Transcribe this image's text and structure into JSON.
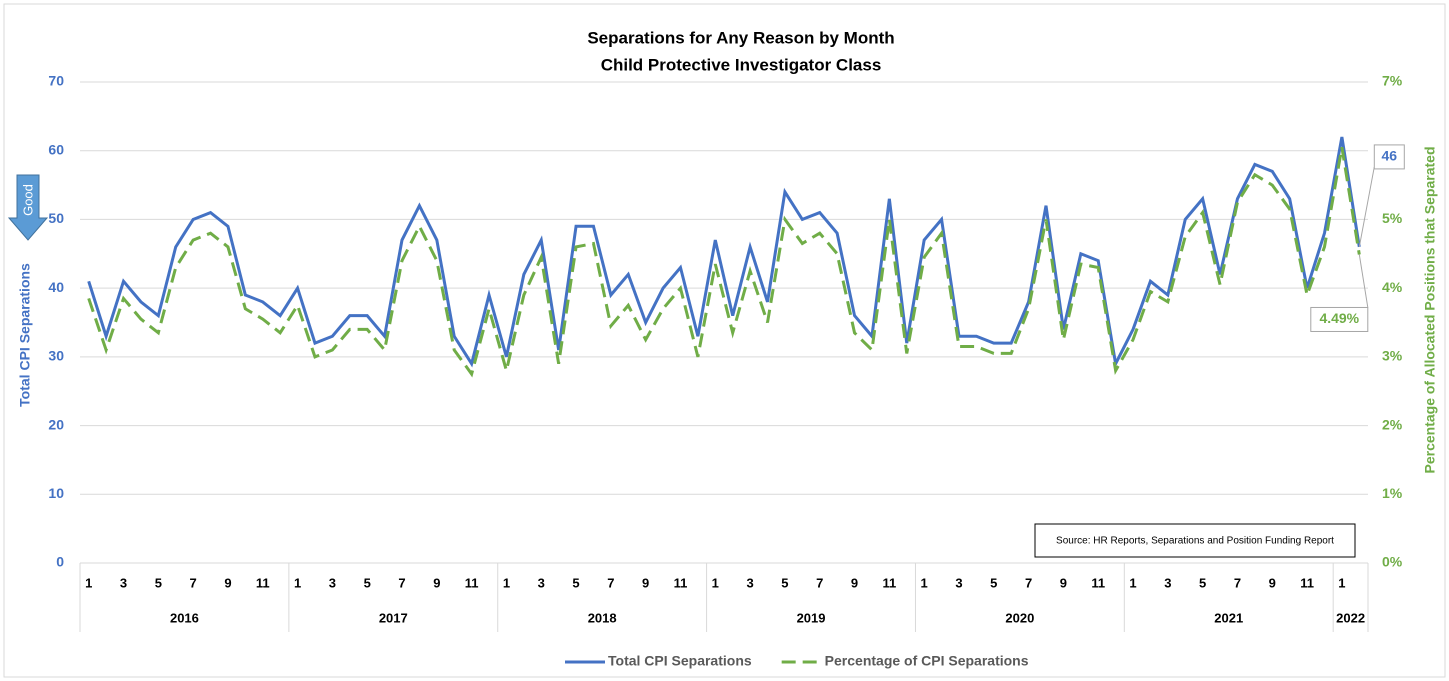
{
  "chart_data": {
    "type": "line",
    "title": "Separations for Any Reason by Month",
    "subtitle": "Child Protective Investigator Class",
    "y_label": "Total CPI Separations",
    "y2_label": "Percentage of Allocated Positions that Separated",
    "annotations": {
      "good": "Good",
      "source": "Source: HR Reports, Separations and Position Funding Report"
    },
    "categories": [
      "1",
      null,
      "3",
      null,
      "5",
      null,
      "7",
      null,
      "9",
      null,
      "11",
      null,
      "1",
      null,
      "3",
      null,
      "5",
      null,
      "7",
      null,
      "9",
      null,
      "11",
      null,
      "1",
      null,
      "3",
      null,
      "5",
      null,
      "7",
      null,
      "9",
      null,
      "11",
      null,
      "1",
      null,
      "3",
      null,
      "5",
      null,
      "7",
      null,
      "9",
      null,
      "11",
      null,
      "1",
      null,
      "3",
      null,
      "5",
      null,
      "7",
      null,
      "9",
      null,
      "11",
      null,
      "1",
      null,
      "3",
      null,
      "5",
      null,
      "7",
      null,
      "9",
      null,
      "11",
      null,
      "1",
      null
    ],
    "groups": [
      "2016",
      "2017",
      "2018",
      "2019",
      "2020",
      "2021",
      "2022"
    ],
    "series": [
      {
        "name": "Total CPI Separations",
        "color": "#4472c4",
        "axis": "y",
        "values": [
          41,
          33,
          41,
          38,
          36,
          46,
          50,
          51,
          49,
          39,
          38,
          36,
          40,
          32,
          33,
          36,
          36,
          33,
          47,
          52,
          47,
          33,
          29,
          39,
          30,
          42,
          47,
          31,
          49,
          49,
          39,
          42,
          35,
          40,
          43,
          33,
          47,
          36,
          46,
          38,
          54,
          50,
          51,
          48,
          36,
          33,
          53,
          32,
          47,
          50,
          33,
          33,
          32,
          32,
          38,
          52,
          34,
          45,
          44,
          29,
          34,
          41,
          39,
          50,
          53,
          42,
          53,
          58,
          57,
          53,
          40,
          48,
          62,
          46
        ],
        "value_labels": [
          null,
          null,
          null,
          null,
          null,
          null,
          null,
          null,
          null,
          null,
          null,
          null,
          null,
          null,
          null,
          null,
          null,
          null,
          null,
          null,
          null,
          null,
          null,
          null,
          null,
          null,
          null,
          null,
          null,
          null,
          null,
          null,
          null,
          null,
          null,
          null,
          null,
          null,
          null,
          null,
          null,
          null,
          null,
          null,
          null,
          null,
          null,
          null,
          null,
          null,
          null,
          null,
          null,
          null,
          null,
          null,
          null,
          null,
          null,
          null,
          null,
          null,
          null,
          null,
          null,
          null,
          null,
          null,
          null,
          null,
          null,
          null,
          null,
          "46"
        ]
      },
      {
        "name": "Percentage of CPI Separations",
        "color": "#70ad47",
        "axis": "y2",
        "dashed": true,
        "values": [
          3.85,
          3.1,
          3.85,
          3.55,
          3.35,
          4.3,
          4.7,
          4.8,
          4.6,
          3.7,
          3.55,
          3.35,
          3.75,
          3.0,
          3.1,
          3.4,
          3.4,
          3.1,
          4.4,
          4.9,
          4.4,
          3.1,
          2.75,
          3.7,
          2.8,
          3.9,
          4.45,
          2.9,
          4.6,
          4.65,
          3.45,
          3.75,
          3.25,
          3.7,
          4.0,
          3.0,
          4.35,
          3.35,
          4.25,
          3.5,
          5.0,
          4.65,
          4.8,
          4.5,
          3.35,
          3.1,
          5.0,
          3.05,
          4.45,
          4.8,
          3.15,
          3.15,
          3.05,
          3.05,
          3.7,
          5.0,
          3.25,
          4.35,
          4.3,
          2.8,
          3.25,
          3.95,
          3.8,
          4.75,
          5.1,
          4.05,
          5.25,
          5.65,
          5.5,
          5.15,
          3.9,
          4.6,
          6.05,
          4.49
        ],
        "value_labels": [
          null,
          null,
          null,
          null,
          null,
          null,
          null,
          null,
          null,
          null,
          null,
          null,
          null,
          null,
          null,
          null,
          null,
          null,
          null,
          null,
          null,
          null,
          null,
          null,
          null,
          null,
          null,
          null,
          null,
          null,
          null,
          null,
          null,
          null,
          null,
          null,
          null,
          null,
          null,
          null,
          null,
          null,
          null,
          null,
          null,
          null,
          null,
          null,
          null,
          null,
          null,
          null,
          null,
          null,
          null,
          null,
          null,
          null,
          null,
          null,
          null,
          null,
          null,
          null,
          null,
          null,
          null,
          null,
          null,
          null,
          null,
          null,
          null,
          "4.49%"
        ]
      }
    ],
    "ylim": [
      0,
      70
    ],
    "yticks": [
      0,
      10,
      20,
      30,
      40,
      50,
      60,
      70
    ],
    "y2lim": [
      0,
      7
    ],
    "y2ticks": [
      {
        "value": 0,
        "label": "0%"
      },
      {
        "value": 1,
        "label": "1%"
      },
      {
        "value": 2,
        "label": "2%"
      },
      {
        "value": 3,
        "label": "3%"
      },
      {
        "value": 4,
        "label": "4%"
      },
      {
        "value": 5,
        "label": "5%"
      },
      {
        "value": 6,
        "label": "6%"
      },
      {
        "value": 7,
        "label": "7%"
      }
    ],
    "grid": true,
    "legend": "bottom"
  }
}
